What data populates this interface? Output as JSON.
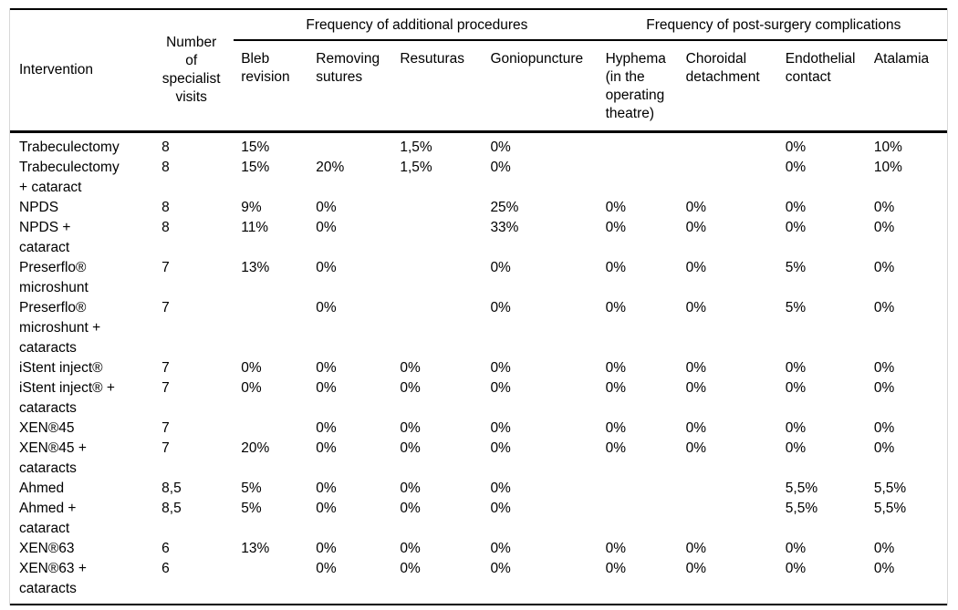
{
  "figure": {
    "header": {
      "intervention": "Intervention",
      "visits": "Number\nof\nspecialist\nvisits",
      "group_additional": "Frequency of additional procedures",
      "group_complications": "Frequency of post-surgery complications",
      "subcolumns": [
        "Bleb\nrevision",
        "Removing\nsutures",
        "Resuturas",
        "Goniopuncture",
        "Hyphema\n(in the\noperating\ntheatre)",
        "Choroidal\ndetachment",
        "Endothelial\ncontact",
        "Atalamia"
      ]
    },
    "rows": [
      {
        "intervention": "Trabeculectomy",
        "visits": "8",
        "values": [
          "15%",
          "",
          "1,5%",
          "0%",
          "",
          "",
          "0%",
          "10%"
        ]
      },
      {
        "intervention": "Trabeculectomy\n+ cataract",
        "visits": "8",
        "values": [
          "15%",
          "20%",
          "1,5%",
          "0%",
          "",
          "",
          "0%",
          "10%"
        ]
      },
      {
        "intervention": "NPDS",
        "visits": "8",
        "values": [
          "9%",
          "0%",
          "",
          "25%",
          "0%",
          "0%",
          "0%",
          "0%"
        ]
      },
      {
        "intervention": "NPDS +\ncataract",
        "visits": "8",
        "values": [
          "11%",
          "0%",
          "",
          "33%",
          "0%",
          "0%",
          "0%",
          "0%"
        ]
      },
      {
        "intervention": "Preserflo®\nmicroshunt",
        "visits": "7",
        "values": [
          "13%",
          "0%",
          "",
          "0%",
          "0%",
          "0%",
          "5%",
          "0%"
        ]
      },
      {
        "intervention": "Preserflo®\nmicroshunt +\ncataracts",
        "visits": "7",
        "values": [
          "",
          "0%",
          "",
          "0%",
          "0%",
          "0%",
          "5%",
          "0%"
        ]
      },
      {
        "intervention": "iStent inject®",
        "visits": "7",
        "values": [
          "0%",
          "0%",
          "0%",
          "0%",
          "0%",
          "0%",
          "0%",
          "0%"
        ]
      },
      {
        "intervention": "iStent inject® +\ncataracts",
        "visits": "7",
        "values": [
          "0%",
          "0%",
          "0%",
          "0%",
          "0%",
          "0%",
          "0%",
          "0%"
        ]
      },
      {
        "intervention": "XEN®45",
        "visits": "7",
        "values": [
          "",
          "0%",
          "0%",
          "0%",
          "0%",
          "0%",
          "0%",
          "0%"
        ]
      },
      {
        "intervention": "XEN®45 +\ncataracts",
        "visits": "7",
        "values": [
          "20%",
          "0%",
          "0%",
          "0%",
          "0%",
          "0%",
          "0%",
          "0%"
        ]
      },
      {
        "intervention": "Ahmed",
        "visits": "8,5",
        "values": [
          "5%",
          "0%",
          "0%",
          "0%",
          "",
          "",
          "5,5%",
          "5,5%"
        ]
      },
      {
        "intervention": "Ahmed +\ncataract",
        "visits": "8,5",
        "values": [
          "5%",
          "0%",
          "0%",
          "0%",
          "",
          "",
          "5,5%",
          "5,5%"
        ]
      },
      {
        "intervention": "XEN®63",
        "visits": "6",
        "values": [
          "13%",
          "0%",
          "0%",
          "0%",
          "0%",
          "0%",
          "0%",
          "0%"
        ]
      },
      {
        "intervention": "XEN®63 +\ncataracts",
        "visits": "6",
        "values": [
          "",
          "0%",
          "0%",
          "0%",
          "0%",
          "0%",
          "0%",
          "0%"
        ]
      }
    ]
  }
}
